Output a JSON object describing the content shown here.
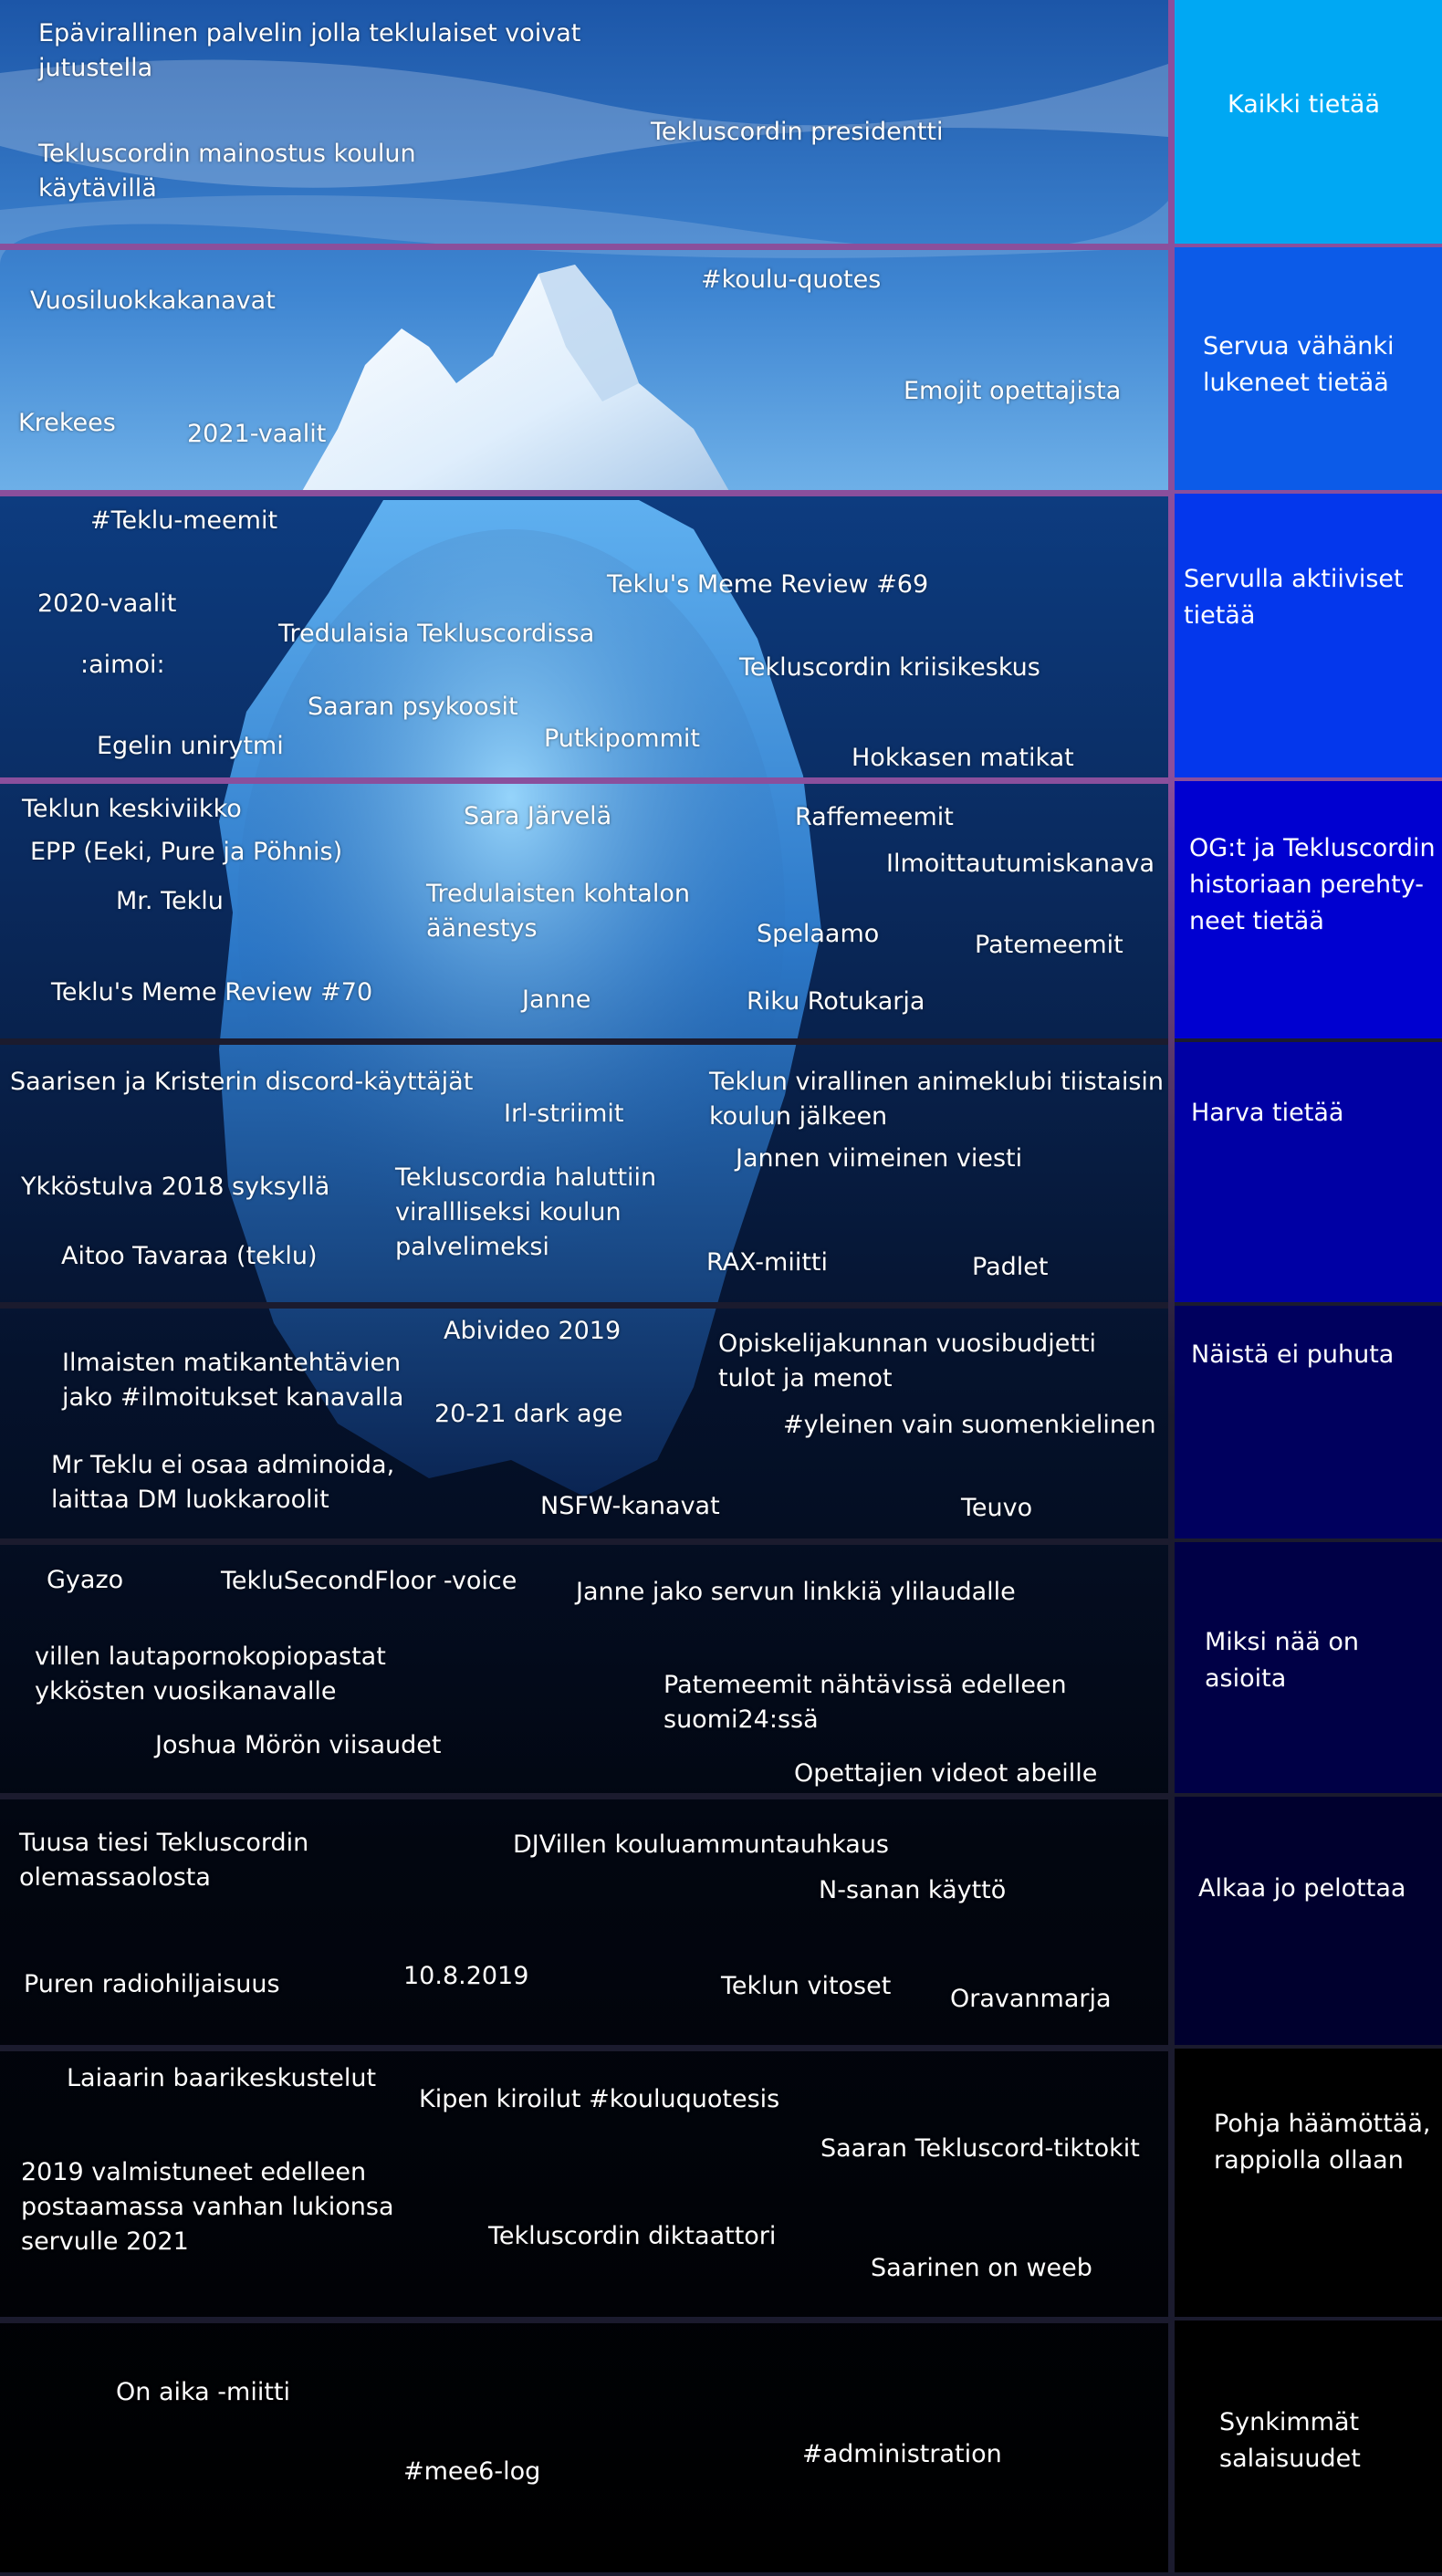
{
  "colors": {
    "separator_top": "#8a4f9c",
    "separator_bottom": "#1b1b2e",
    "sky_top": "#1f5fb0",
    "water_surface": "#0d3c80",
    "deep": "#000000",
    "iceberg_top": "#f2f8ff",
    "iceberg_under": "#3f8fdc"
  },
  "tiers": [
    {
      "label": "Kaikki tietää",
      "color": "#00a8f3",
      "items": [
        "Epävirallinen palvelin jolla teklulaiset voivat\njutustella",
        "Tekluscordin presidentti",
        "Tekluscordin mainostus koulun\nkäytävillä"
      ]
    },
    {
      "label": "Servua vähänki\nlukeneet tietää",
      "color": "#0c5be8",
      "items": [
        "#koulu-quotes",
        "Vuosiluokkakanavat",
        "Emojit opettajista",
        "Krekees",
        "2021-vaalit"
      ]
    },
    {
      "label": "Servulla aktiiviset\ntietää",
      "color": "#0437ec",
      "items": [
        "#Teklu-meemit",
        "Teklu's Meme Review #69",
        "2020-vaalit",
        "Tredulaisia Tekluscordissa",
        ":aimoi:",
        "Tekluscordin kriisikeskus",
        "Saaran psykoosit",
        "Putkipommit",
        "Egelin unirytmi",
        "Hokkasen matikat"
      ]
    },
    {
      "label": "OG:t ja Tekluscordin\nhistoriaan perehty-\nneet tietää",
      "color": "#0000d0",
      "items": [
        "Teklun keskiviikko",
        "Sara Järvelä",
        "Raffemeemit",
        "EPP (Eeki, Pure ja Pöhnis)",
        "Ilmoittautumiskanava",
        "Mr. Teklu",
        "Tredulaisten kohtalon\näänestys",
        "Spelaamo",
        "Patemeemit",
        "Teklu's Meme Review #70",
        "Janne",
        "Riku Rotukarja"
      ]
    },
    {
      "label": "Harva tietää",
      "color": "#0000a4",
      "items": [
        "Saarisen ja Kristerin discord-käyttäjät",
        "Teklun virallinen animeklubi  tiistaisin\nkoulun jälkeen",
        "Irl-striimit",
        "Jannen viimeinen viesti",
        "Ykköstulva 2018 syksyllä",
        "Tekluscordia haluttiin\nvirallliseksi koulun\npalvelimeksi",
        "Aitoo Tavaraa (teklu)",
        "RAX-miitti",
        "Padlet"
      ]
    },
    {
      "label": "Näistä ei puhuta",
      "color": "#00005e",
      "items": [
        "Abivideo 2019",
        "Opiskelijakunnan vuosibudjetti\ntulot ja menot",
        "Ilmaisten matikantehtävien\njako #ilmoitukset kanavalla",
        "20-21 dark age",
        "#yleinen vain suomenkielinen",
        "Mr Teklu ei osaa adminoida,\nlaittaa DM luokkaroolit",
        "NSFW-kanavat",
        "Teuvo"
      ]
    },
    {
      "label": "Miksi nää on\nasioita",
      "color": "#000046",
      "items": [
        "Gyazo",
        "TekluSecondFloor -voice",
        "Janne jako servun linkkiä ylilaudalle",
        "villen lautapornokopiopastat\nykkösten vuosikanavalle",
        "Patemeemit nähtävissä edelleen\nsuomi24:ssä",
        "Joshua Mörön viisaudet",
        "Opettajien videot abeille"
      ]
    },
    {
      "label": "Alkaa jo pelottaa",
      "color": "#00002e",
      "items": [
        "Tuusa tiesi Tekluscordin\nolemassaolosta",
        "DJVillen kouluammuntauhkaus",
        "N-sanan käyttö",
        "10.8.2019",
        "Puren radiohiljaisuus",
        "Teklun vitoset",
        "Oravanmarja"
      ]
    },
    {
      "label": "Pohja häämöttää,\nrappiolla ollaan",
      "color": "#000000",
      "items": [
        "Laiaarin baarikeskustelut",
        "Kipen kiroilut #kouluquotesis",
        "Saaran Tekluscord-tiktokit",
        "2019 valmistuneet edelleen\npostaamassa vanhan lukionsa\nservulle 2021",
        "Tekluscordin diktaattori",
        "Saarinen on weeb"
      ]
    },
    {
      "label": "Synkimmät\nsalaisuudet",
      "color": "#000000",
      "items": [
        "On aika -miitti",
        "#administration",
        "#mee6-log"
      ]
    }
  ]
}
